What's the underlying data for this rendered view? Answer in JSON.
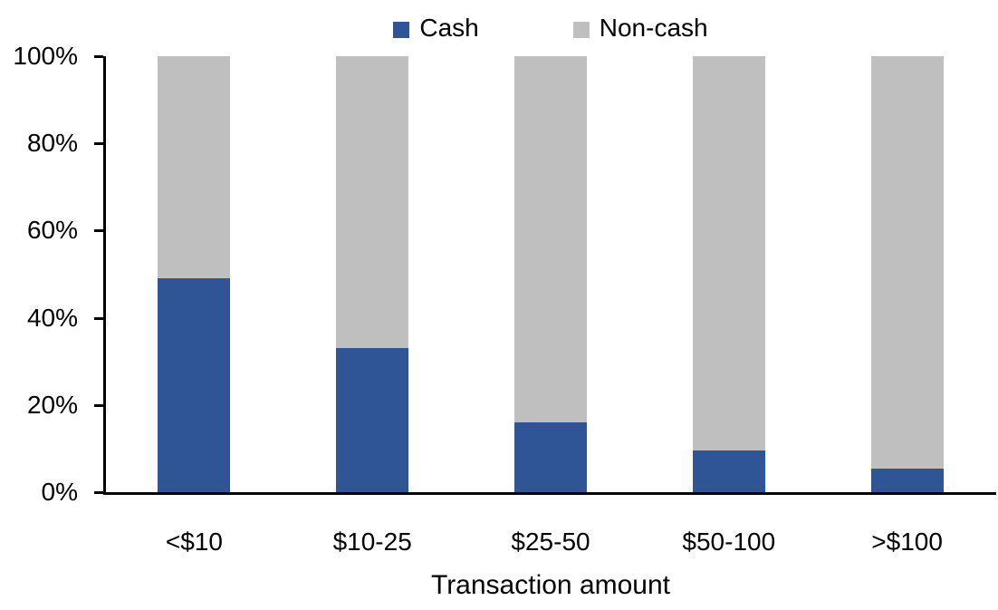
{
  "chart_data": {
    "type": "bar",
    "variant": "100-percent-stacked-column",
    "title": "",
    "xlabel": "Transaction amount",
    "ylabel": "",
    "ylim": [
      0,
      100
    ],
    "ytick_interval": 20,
    "yticks": [
      {
        "value": 0,
        "label": "0%"
      },
      {
        "value": 20,
        "label": "20%"
      },
      {
        "value": 40,
        "label": "40%"
      },
      {
        "value": 60,
        "label": "60%"
      },
      {
        "value": 80,
        "label": "80%"
      },
      {
        "value": 100,
        "label": "100%"
      }
    ],
    "categories": [
      "<$10",
      "$10-25",
      "$25-50",
      "$50-100",
      ">$100"
    ],
    "series": [
      {
        "name": "Cash",
        "color": "#2F5597",
        "values": [
          49,
          33,
          16,
          9.5,
          5.5
        ]
      },
      {
        "name": "Non-cash",
        "color": "#BFBFBF",
        "values": [
          51,
          67,
          84,
          90.5,
          94.5
        ]
      }
    ],
    "legend_position": "top-center",
    "grid": false,
    "axis_color": "#000000",
    "text_color": "#000000",
    "background": "#FFFFFF"
  },
  "legend": {
    "items": [
      {
        "label": "Cash",
        "color": "#2F5597"
      },
      {
        "label": "Non-cash",
        "color": "#BFBFBF"
      }
    ]
  }
}
